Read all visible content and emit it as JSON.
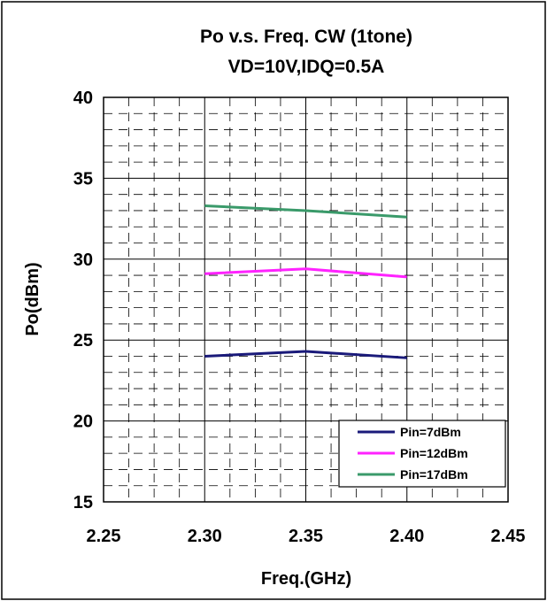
{
  "chart_data": {
    "type": "line",
    "title": "Po  v.s.  Freq.  CW (1tone)",
    "subtitle": "VD=10V,IDQ=0.5A",
    "xlabel": "Freq.(GHz)",
    "ylabel": "Po(dBm)",
    "xlim": [
      2.25,
      2.45
    ],
    "ylim": [
      15,
      40
    ],
    "x_ticks": [
      "2.25",
      "2.30",
      "2.35",
      "2.40",
      "2.45"
    ],
    "y_ticks": [
      "15",
      "20",
      "25",
      "30",
      "35",
      "40"
    ],
    "grid": true,
    "legend_position": "bottom-right",
    "x": [
      2.3,
      2.35,
      2.4
    ],
    "series": [
      {
        "name": "Pin=7dBm",
        "color": "#1a1a7a",
        "values": [
          24.0,
          24.3,
          23.9
        ]
      },
      {
        "name": "Pin=12dBm",
        "color": "#ff22ff",
        "values": [
          29.1,
          29.4,
          28.9
        ]
      },
      {
        "name": "Pin=17dBm",
        "color": "#3a9a6a",
        "values": [
          33.3,
          33.0,
          32.6
        ]
      }
    ]
  }
}
